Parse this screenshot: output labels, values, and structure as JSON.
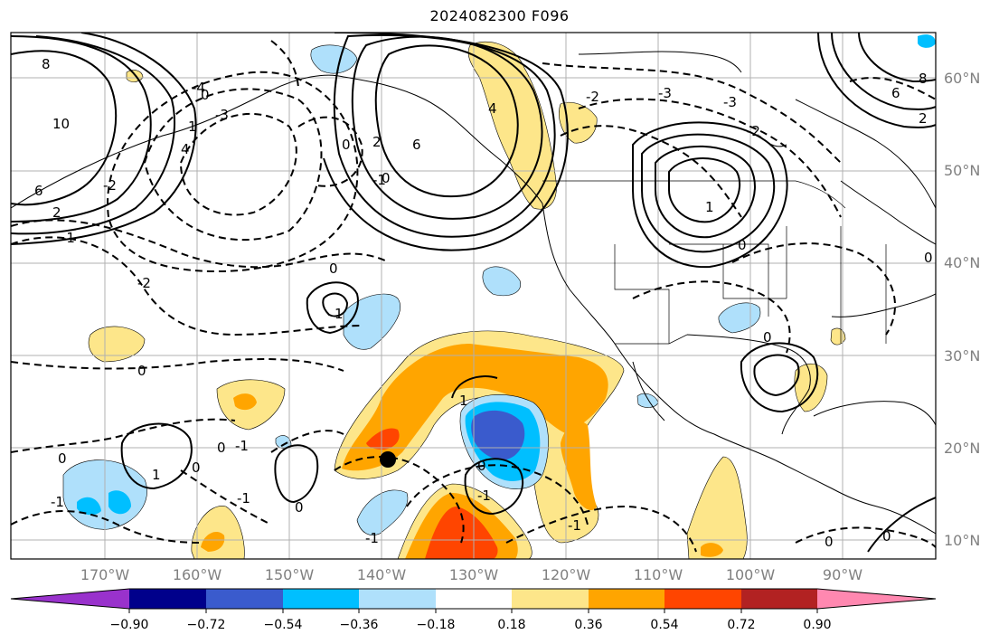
{
  "title": "2024082300 F096",
  "map": {
    "lat_labels": [
      "60°N",
      "50°N",
      "40°N",
      "30°N",
      "20°N",
      "10°N"
    ],
    "lon_labels": [
      "170°W",
      "160°W",
      "150°W",
      "140°W",
      "130°W",
      "120°W",
      "110°W",
      "100°W",
      "90°W"
    ],
    "contour_labels": [
      "8",
      "10",
      "6",
      "4",
      "2",
      "0",
      "-1",
      "-2",
      "-3",
      "-4",
      "1",
      "-2",
      "0",
      "6",
      "4",
      "2",
      "0",
      "1",
      "0",
      "-1",
      "0",
      "0",
      "-1",
      "-2",
      "-3",
      "-2",
      "-3",
      "0",
      "0",
      "-1",
      "0",
      "1",
      "0",
      "-1",
      "1",
      "0",
      "-1",
      "0",
      "-1",
      "1",
      "-1",
      "0",
      "6",
      "8",
      "2",
      "0",
      "0"
    ],
    "colorbar_ticks": [
      "−0.90",
      "−0.72",
      "−0.54",
      "−0.36",
      "−0.18",
      "0.18",
      "0.36",
      "0.54",
      "0.72",
      "0.90"
    ],
    "colors": {
      "neg_extend": "#9932cc",
      "neg_090": "#00008b",
      "neg_072": "#3a5bcd",
      "neg_054": "#00bfff",
      "neg_036": "#afe0fb",
      "neutral": "#ffffff",
      "pos_018": "#fde68a",
      "pos_036": "#ffa500",
      "pos_054": "#ff4500",
      "pos_072": "#b22222",
      "pos_extend": "#ff88b0"
    },
    "marker": "black-dot"
  }
}
